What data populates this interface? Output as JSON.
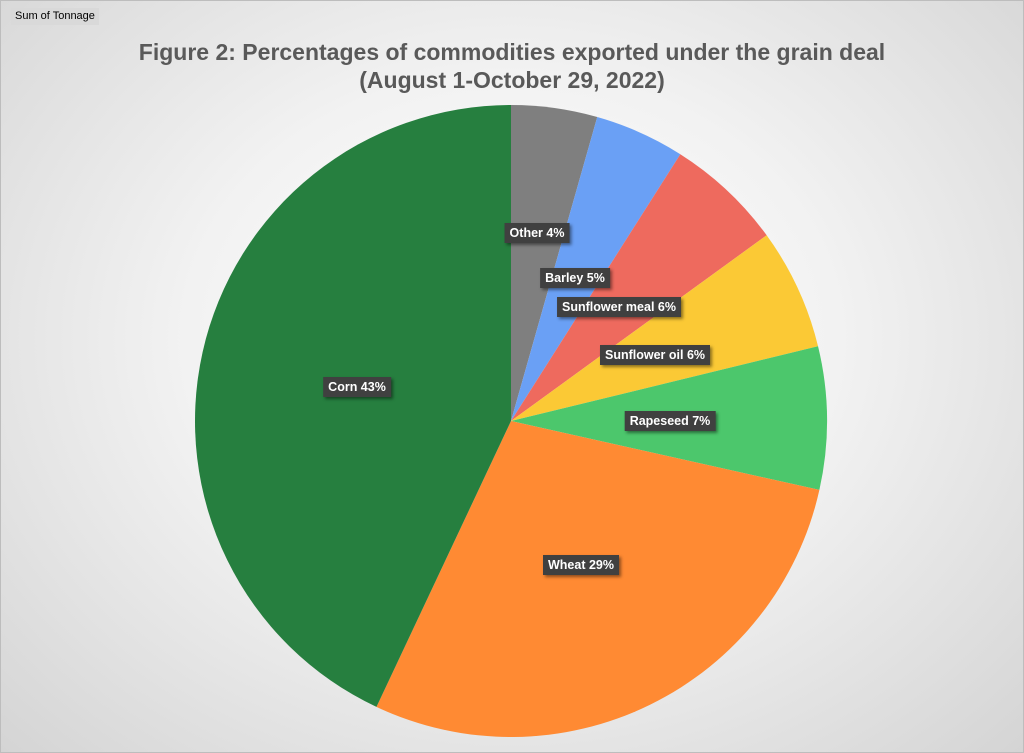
{
  "field_button": "Sum of Tonnage",
  "chart_data": {
    "type": "pie",
    "title_line1": "Figure 2: Percentages of commodities exported under the grain deal",
    "title_line2": "(August 1-October 29, 2022)",
    "slices": [
      {
        "name": "Other",
        "value": 4.4,
        "label": "Other 4%",
        "color": "#7f7f7f"
      },
      {
        "name": "Barley",
        "value": 4.6,
        "label": "Barley 5%",
        "color": "#6aa0f5"
      },
      {
        "name": "Sunflower meal",
        "value": 6.0,
        "label": "Sunflower meal 6%",
        "color": "#ee6a5e"
      },
      {
        "name": "Sunflower oil",
        "value": 6.2,
        "label": "Sunflower oil 6%",
        "color": "#fbc935"
      },
      {
        "name": "Rapeseed",
        "value": 7.3,
        "label": "Rapeseed 7%",
        "color": "#4cc76c"
      },
      {
        "name": "Wheat",
        "value": 28.5,
        "label": "Wheat 29%",
        "color": "#ff8a33"
      },
      {
        "name": "Corn",
        "value": 43.0,
        "label": "Corn 43%",
        "color": "#267f3f"
      }
    ]
  }
}
